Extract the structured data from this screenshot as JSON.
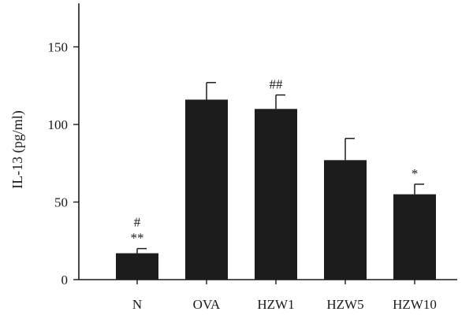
{
  "chart_data": {
    "type": "bar",
    "title": "",
    "xlabel": "",
    "ylabel": "IL-13 (pg/ml)",
    "ylim": [
      0,
      175
    ],
    "yticks": [
      0,
      50,
      100,
      150
    ],
    "grid": false,
    "categories": [
      "N",
      "OVA",
      "HZW1",
      "HZW5",
      "HZW10"
    ],
    "values": [
      17,
      116,
      110,
      77,
      55
    ],
    "error_upper": [
      20,
      127,
      119,
      91,
      61.5
    ],
    "annotations": [
      {
        "category": "N",
        "lines": [
          "#",
          "**"
        ]
      },
      {
        "category": "OVA",
        "lines": []
      },
      {
        "category": "HZW1",
        "lines": [
          "##"
        ]
      },
      {
        "category": "HZW5",
        "lines": []
      },
      {
        "category": "HZW10",
        "lines": [
          "*"
        ]
      }
    ],
    "colors": {
      "bar": "#1c1c1c",
      "axis": "#1a1a1a"
    }
  }
}
